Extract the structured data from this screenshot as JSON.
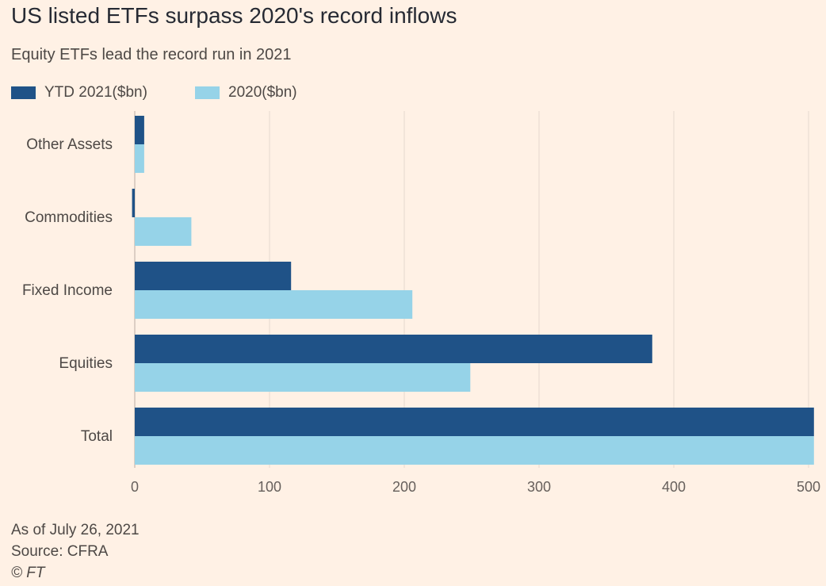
{
  "title": "US listed ETFs surpass 2020's record inflows",
  "subtitle": "Equity ETFs lead the record run in 2021",
  "colors": {
    "background": "#fff1e5",
    "series_2021": "#1f5287",
    "series_2020": "#96d3e8",
    "grid": "#e6d9ce",
    "axis_text": "#66605c"
  },
  "chart_data": {
    "type": "bar",
    "orientation": "horizontal",
    "categories": [
      "Other Assets",
      "Commodities",
      "Fixed Income",
      "Equities",
      "Total"
    ],
    "series": [
      {
        "name": "YTD 2021($bn)",
        "values": [
          7,
          -2,
          116,
          384,
          504
        ]
      },
      {
        "name": "2020($bn)",
        "values": [
          7,
          42,
          206,
          249,
          504
        ]
      }
    ],
    "xlim": [
      0,
      500
    ],
    "xticks": [
      "0",
      "100",
      "200",
      "300",
      "400",
      "500"
    ],
    "xlabel": "",
    "ylabel": "",
    "grid": true,
    "legend_position": "top-left"
  },
  "footer": {
    "date_note": "As of July 26, 2021",
    "source": "Source: CFRA",
    "credit": "© FT"
  }
}
